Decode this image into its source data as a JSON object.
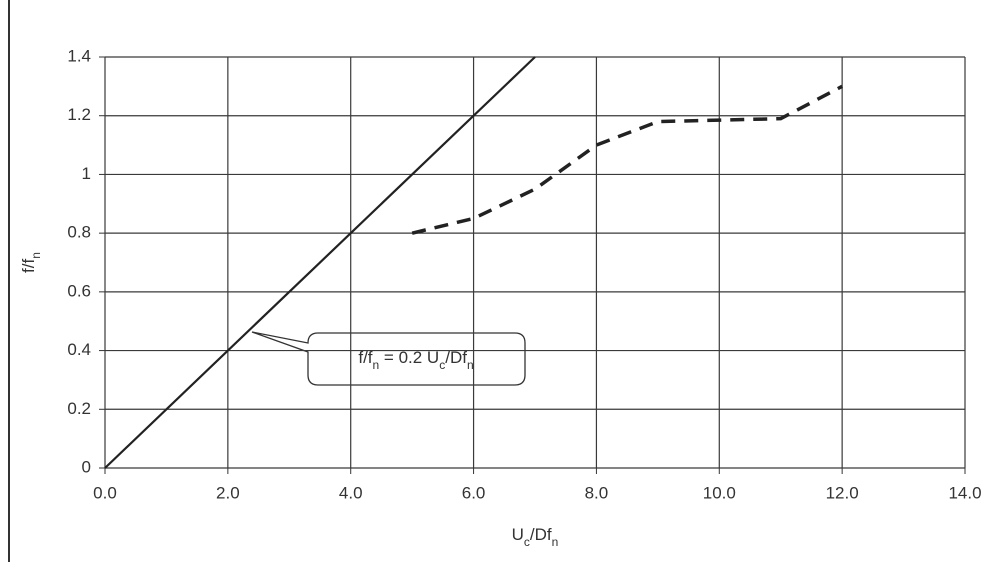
{
  "chart_data": {
    "type": "line",
    "x_label": [
      {
        "text": "U"
      },
      {
        "text": "c",
        "sub": true
      },
      {
        "text": "/Df"
      },
      {
        "text": "n",
        "sub": true
      }
    ],
    "y_label": [
      {
        "text": "f/f"
      },
      {
        "text": "n",
        "sub": true
      }
    ],
    "annotation": [
      {
        "text": "f/f"
      },
      {
        "text": "n",
        "sub": true
      },
      {
        "text": " = 0.2 U"
      },
      {
        "text": "c",
        "sub": true
      },
      {
        "text": "/Df"
      },
      {
        "text": "n",
        "sub": true
      }
    ],
    "xlim": [
      0,
      14
    ],
    "ylim": [
      0,
      1.4
    ],
    "xticks": [
      {
        "value": 0,
        "label": "0.0"
      },
      {
        "value": 2,
        "label": "2.0"
      },
      {
        "value": 4,
        "label": "4.0"
      },
      {
        "value": 6,
        "label": "6.0"
      },
      {
        "value": 8,
        "label": "8.0"
      },
      {
        "value": 10,
        "label": "10.0"
      },
      {
        "value": 12,
        "label": "12.0"
      },
      {
        "value": 14,
        "label": "14.0"
      }
    ],
    "yticks": [
      0,
      0.2,
      0.4,
      0.6,
      0.8,
      1,
      1.2,
      1.4
    ],
    "grid": true,
    "series": [
      {
        "color": "#222222",
        "style": "solid",
        "x": [
          0,
          7
        ],
        "values": [
          0,
          1.4
        ]
      },
      {
        "color": "#222222",
        "style": "dashed",
        "x": [
          5,
          6,
          7,
          8,
          9,
          10,
          11,
          12
        ],
        "values": [
          0.8,
          0.85,
          0.95,
          1.1,
          1.18,
          1.185,
          1.19,
          1.3
        ]
      }
    ]
  }
}
